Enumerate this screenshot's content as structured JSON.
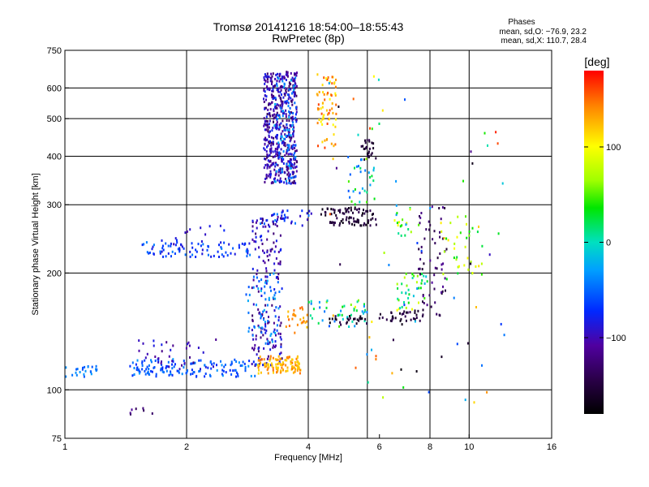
{
  "chart_data": {
    "type": "scatter",
    "title": "Tromsø 20141216 18:54:00–18:55:43",
    "subtitle": "RwPretec (8p)",
    "xlabel": "Frequency [MHz]",
    "ylabel": "Stationary phase Virtual Height [km]",
    "x_scale": "log",
    "y_scale": "log",
    "xlim": [
      1,
      16
    ],
    "ylim": [
      75,
      750
    ],
    "x_ticks": [
      {
        "value": 1,
        "label": "1"
      },
      {
        "value": 2,
        "label": "2"
      },
      {
        "value": 4,
        "label": "4"
      },
      {
        "value": 6,
        "label": "6"
      },
      {
        "value": 8,
        "label": "8"
      },
      {
        "value": 10,
        "label": "10"
      },
      {
        "value": 16,
        "label": "16"
      }
    ],
    "y_ticks": [
      {
        "value": 75,
        "label": "75"
      },
      {
        "value": 100,
        "label": "100"
      },
      {
        "value": 200,
        "label": "200"
      },
      {
        "value": 300,
        "label": "300"
      },
      {
        "value": 400,
        "label": "400"
      },
      {
        "value": 500,
        "label": "500"
      },
      {
        "value": 600,
        "label": "600"
      },
      {
        "value": 750,
        "label": "750"
      }
    ],
    "x_gridlines": [
      2,
      4,
      5.6,
      8,
      10
    ],
    "y_gridlines": [
      100,
      200,
      300,
      400,
      500,
      600
    ],
    "grid": true,
    "colorbar": {
      "title": "[deg]",
      "range": [
        -180,
        180
      ],
      "ticks": [
        {
          "value": 100,
          "label": "100"
        },
        {
          "value": 0,
          "label": "0"
        },
        {
          "value": -100,
          "label": "−100"
        }
      ]
    },
    "stats": {
      "heading": "Phases",
      "line_o": "mean, sd,O: −76.9, 23.2",
      "line_x": "mean, sd,X: 110.7, 28.4"
    },
    "clusters": [
      {
        "x": [
          3.1,
          3.75
        ],
        "y": [
          340,
          660
        ],
        "phase": [
          -135,
          -75
        ],
        "n": 520
      },
      {
        "x": [
          3.3,
          3.75
        ],
        "y": [
          340,
          640
        ],
        "phase": [
          -60,
          -20
        ],
        "n": 90
      },
      {
        "x": [
          4.2,
          4.7
        ],
        "y": [
          420,
          650
        ],
        "phase": [
          100,
          165
        ],
        "n": 70
      },
      {
        "x": [
          5.4,
          5.9
        ],
        "y": [
          390,
          440
        ],
        "phase": [
          -165,
          -140
        ],
        "n": 25
      },
      {
        "x": [
          5.0,
          5.9
        ],
        "y": [
          300,
          400
        ],
        "phase": [
          -60,
          50
        ],
        "n": 30
      },
      {
        "x": [
          4.3,
          5.9
        ],
        "y": [
          265,
          295
        ],
        "phase": [
          -170,
          -140
        ],
        "n": 85
      },
      {
        "x": [
          3.0,
          4.1
        ],
        "y": [
          265,
          290
        ],
        "phase": [
          -100,
          -40
        ],
        "n": 35
      },
      {
        "x": [
          1.55,
          2.9
        ],
        "y": [
          220,
          240
        ],
        "phase": [
          -90,
          -40
        ],
        "n": 85
      },
      {
        "x": [
          1.7,
          2.5
        ],
        "y": [
          235,
          265
        ],
        "phase": [
          -110,
          -70
        ],
        "n": 15
      },
      {
        "x": [
          2.9,
          3.45
        ],
        "y": [
          115,
          280
        ],
        "phase": [
          -130,
          -75
        ],
        "n": 170
      },
      {
        "x": [
          2.8,
          3.4
        ],
        "y": [
          130,
          200
        ],
        "phase": [
          -60,
          -20
        ],
        "n": 60
      },
      {
        "x": [
          1.45,
          3.0
        ],
        "y": [
          108,
          120
        ],
        "phase": [
          -75,
          -30
        ],
        "n": 140
      },
      {
        "x": [
          1.5,
          2.4
        ],
        "y": [
          112,
          135
        ],
        "phase": [
          -120,
          -80
        ],
        "n": 35
      },
      {
        "x": [
          3.0,
          3.85
        ],
        "y": [
          110,
          122
        ],
        "phase": [
          110,
          150
        ],
        "n": 110
      },
      {
        "x": [
          3.5,
          4.0
        ],
        "y": [
          140,
          165
        ],
        "phase": [
          120,
          160
        ],
        "n": 25
      },
      {
        "x": [
          4.0,
          5.6
        ],
        "y": [
          145,
          170
        ],
        "phase": [
          -60,
          60
        ],
        "n": 45
      },
      {
        "x": [
          4.5,
          5.6
        ],
        "y": [
          145,
          155
        ],
        "phase": [
          -175,
          -140
        ],
        "n": 25
      },
      {
        "x": [
          6.0,
          7.7
        ],
        "y": [
          150,
          160
        ],
        "phase": [
          -170,
          -140
        ],
        "n": 35
      },
      {
        "x": [
          6.6,
          7.9
        ],
        "y": [
          160,
          200
        ],
        "phase": [
          -20,
          100
        ],
        "n": 40
      },
      {
        "x": [
          7.5,
          8.8
        ],
        "y": [
          155,
          300
        ],
        "phase": [
          -160,
          -110
        ],
        "n": 60
      },
      {
        "x": [
          6.4,
          7.2
        ],
        "y": [
          240,
          300
        ],
        "phase": [
          -30,
          100
        ],
        "n": 20
      },
      {
        "x": [
          8.5,
          10.8
        ],
        "y": [
          190,
          280
        ],
        "phase": [
          20,
          120
        ],
        "n": 40
      },
      {
        "x": [
          1.0,
          1.2
        ],
        "y": [
          108,
          115
        ],
        "phase": [
          -60,
          -30
        ],
        "n": 25
      },
      {
        "x": [
          1.45,
          1.65
        ],
        "y": [
          86,
          90
        ],
        "phase": [
          -135,
          -110
        ],
        "n": 7
      },
      {
        "x": [
          4.5,
          12.5
        ],
        "y": [
          90,
          650
        ],
        "phase": [
          -180,
          180
        ],
        "n": 70
      }
    ]
  }
}
